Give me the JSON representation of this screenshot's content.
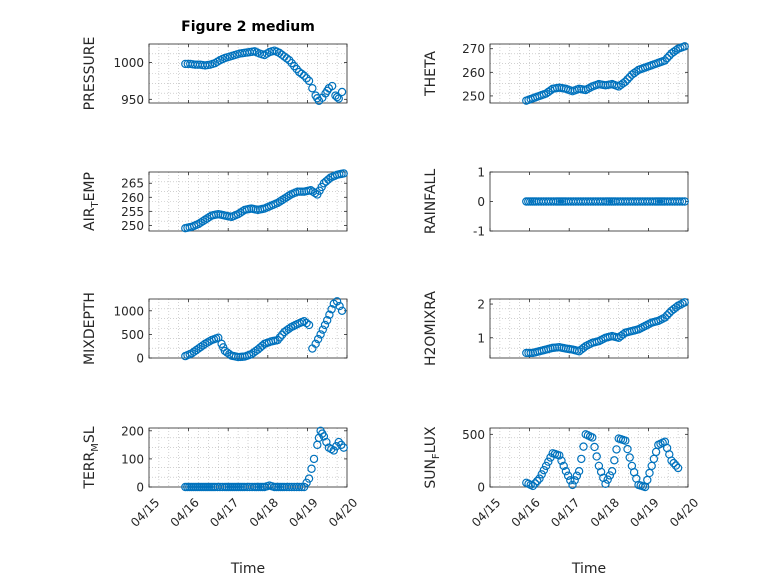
{
  "colors": {
    "marker": "#0072BD",
    "axis": "#262626",
    "grid": "#b5b5b5",
    "background": "#ffffff"
  },
  "chart_data": [
    {
      "type": "scatter",
      "title": "Figure 2 medium",
      "ylabel": "PRESSURE",
      "xlim": [
        "04/15",
        "04/20"
      ],
      "ylim": [
        945,
        1025
      ],
      "yticks": [
        950,
        1000
      ],
      "xticks": [
        "04/15",
        "04/16",
        "04/17",
        "04/18",
        "04/19",
        "04/20"
      ],
      "xtick_labels_shown": false,
      "grid": true,
      "points": [
        [
          "04/15 22:00",
          998
        ],
        [
          "04/16 01:00",
          998
        ],
        [
          "04/16 04:00",
          997
        ],
        [
          "04/16 07:00",
          997
        ],
        [
          "04/16 10:00",
          996
        ],
        [
          "04/16 13:00",
          997
        ],
        [
          "04/16 16:00",
          999
        ],
        [
          "04/16 19:00",
          1003
        ],
        [
          "04/16 22:00",
          1006
        ],
        [
          "04/17 01:00",
          1008
        ],
        [
          "04/17 04:00",
          1010
        ],
        [
          "04/17 07:00",
          1012
        ],
        [
          "04/17 10:00",
          1013
        ],
        [
          "04/17 13:00",
          1014
        ],
        [
          "04/17 16:00",
          1015
        ],
        [
          "04/17 19:00",
          1012
        ],
        [
          "04/17 22:00",
          1010
        ],
        [
          "04/18 01:00",
          1014
        ],
        [
          "04/18 04:00",
          1016
        ],
        [
          "04/18 07:00",
          1013
        ],
        [
          "04/18 10:00",
          1008
        ],
        [
          "04/18 13:00",
          1003
        ],
        [
          "04/18 16:00",
          995
        ],
        [
          "04/18 19:00",
          987
        ],
        [
          "04/18 22:00",
          982
        ],
        [
          "04/19 01:00",
          975
        ],
        [
          "04/19 03:00",
          965
        ],
        [
          "04/19 05:00",
          955
        ],
        [
          "04/19 07:00",
          948
        ],
        [
          "04/19 09:00",
          952
        ],
        [
          "04/19 11:00",
          958
        ],
        [
          "04/19 13:00",
          965
        ],
        [
          "04/19 15:00",
          968
        ],
        [
          "04/19 17:00",
          955
        ],
        [
          "04/19 19:00",
          951
        ],
        [
          "04/19 21:00",
          960
        ]
      ]
    },
    {
      "type": "scatter",
      "ylabel": "THETA",
      "xlim": [
        "04/15",
        "04/20"
      ],
      "ylim": [
        247,
        272
      ],
      "yticks": [
        250,
        260,
        270
      ],
      "xticks": [
        "04/15",
        "04/16",
        "04/17",
        "04/18",
        "04/19",
        "04/20"
      ],
      "xtick_labels_shown": false,
      "grid": true,
      "points": [
        [
          "04/15 22:00",
          248
        ],
        [
          "04/16 02:00",
          249
        ],
        [
          "04/16 06:00",
          250
        ],
        [
          "04/16 10:00",
          251
        ],
        [
          "04/16 14:00",
          253
        ],
        [
          "04/16 18:00",
          253.5
        ],
        [
          "04/16 22:00",
          253
        ],
        [
          "04/17 02:00",
          252
        ],
        [
          "04/17 06:00",
          253
        ],
        [
          "04/17 10:00",
          252.5
        ],
        [
          "04/17 14:00",
          254
        ],
        [
          "04/17 18:00",
          255
        ],
        [
          "04/17 22:00",
          254.5
        ],
        [
          "04/18 02:00",
          255
        ],
        [
          "04/18 06:00",
          254
        ],
        [
          "04/18 10:00",
          256
        ],
        [
          "04/18 14:00",
          259
        ],
        [
          "04/18 18:00",
          261
        ],
        [
          "04/18 22:00",
          262
        ],
        [
          "04/19 02:00",
          263
        ],
        [
          "04/19 06:00",
          264
        ],
        [
          "04/19 10:00",
          265
        ],
        [
          "04/19 14:00",
          268
        ],
        [
          "04/19 18:00",
          270
        ],
        [
          "04/19 22:00",
          271
        ]
      ]
    },
    {
      "type": "scatter",
      "ylabel": "AIR_TEMP",
      "xlim": [
        "04/15",
        "04/20"
      ],
      "ylim": [
        248,
        269
      ],
      "yticks": [
        250,
        255,
        260,
        265
      ],
      "xticks": [
        "04/15",
        "04/16",
        "04/17",
        "04/18",
        "04/19",
        "04/20"
      ],
      "xtick_labels_shown": false,
      "grid": true,
      "points": [
        [
          "04/15 22:00",
          249
        ],
        [
          "04/16 02:00",
          249.5
        ],
        [
          "04/16 06:00",
          250.5
        ],
        [
          "04/16 10:00",
          252
        ],
        [
          "04/16 14:00",
          253.5
        ],
        [
          "04/16 18:00",
          254
        ],
        [
          "04/16 22:00",
          253.5
        ],
        [
          "04/17 02:00",
          253
        ],
        [
          "04/17 06:00",
          254
        ],
        [
          "04/17 10:00",
          255.5
        ],
        [
          "04/17 14:00",
          256
        ],
        [
          "04/17 18:00",
          255.5
        ],
        [
          "04/17 22:00",
          256
        ],
        [
          "04/18 02:00",
          257
        ],
        [
          "04/18 06:00",
          258
        ],
        [
          "04/18 10:00",
          259.5
        ],
        [
          "04/18 14:00",
          261
        ],
        [
          "04/18 18:00",
          262
        ],
        [
          "04/18 22:00",
          262
        ],
        [
          "04/19 02:00",
          262.5
        ],
        [
          "04/19 06:00",
          261
        ],
        [
          "04/19 10:00",
          265
        ],
        [
          "04/19 14:00",
          267
        ],
        [
          "04/19 18:00",
          268
        ],
        [
          "04/19 22:00",
          268.5
        ]
      ]
    },
    {
      "type": "scatter",
      "ylabel": "RAINFALL",
      "xlim": [
        "04/15",
        "04/20"
      ],
      "ylim": [
        -1,
        1
      ],
      "yticks": [
        -1,
        0,
        1
      ],
      "xticks": [
        "04/15",
        "04/16",
        "04/17",
        "04/18",
        "04/19",
        "04/20"
      ],
      "xtick_labels_shown": false,
      "grid": false,
      "points": [
        [
          "04/15 22:00",
          0
        ],
        [
          "04/16 04:00",
          0
        ],
        [
          "04/16 10:00",
          0
        ],
        [
          "04/16 16:00",
          0
        ],
        [
          "04/16 22:00",
          0
        ],
        [
          "04/17 04:00",
          0
        ],
        [
          "04/17 10:00",
          0
        ],
        [
          "04/17 16:00",
          0
        ],
        [
          "04/17 22:00",
          0
        ],
        [
          "04/18 04:00",
          0
        ],
        [
          "04/18 10:00",
          0
        ],
        [
          "04/18 16:00",
          0
        ],
        [
          "04/18 22:00",
          0
        ],
        [
          "04/19 04:00",
          0
        ],
        [
          "04/19 10:00",
          0
        ],
        [
          "04/19 16:00",
          0
        ],
        [
          "04/19 22:00",
          0
        ]
      ]
    },
    {
      "type": "scatter",
      "ylabel": "MIXDEPTH",
      "xlim": [
        "04/15",
        "04/20"
      ],
      "ylim": [
        0,
        1250
      ],
      "yticks": [
        0,
        500,
        1000
      ],
      "xticks": [
        "04/15",
        "04/16",
        "04/17",
        "04/18",
        "04/19",
        "04/20"
      ],
      "xtick_labels_shown": false,
      "grid": true,
      "points": [
        [
          "04/15 22:00",
          40
        ],
        [
          "04/16 02:00",
          100
        ],
        [
          "04/16 06:00",
          200
        ],
        [
          "04/16 10:00",
          300
        ],
        [
          "04/16 14:00",
          380
        ],
        [
          "04/16 18:00",
          430
        ],
        [
          "04/16 20:00",
          300
        ],
        [
          "04/16 22:00",
          150
        ],
        [
          "04/17 02:00",
          50
        ],
        [
          "04/17 06:00",
          20
        ],
        [
          "04/17 10:00",
          30
        ],
        [
          "04/17 14:00",
          80
        ],
        [
          "04/17 18:00",
          180
        ],
        [
          "04/17 22:00",
          300
        ],
        [
          "04/18 02:00",
          350
        ],
        [
          "04/18 06:00",
          380
        ],
        [
          "04/18 10:00",
          550
        ],
        [
          "04/18 14:00",
          650
        ],
        [
          "04/18 18:00",
          720
        ],
        [
          "04/18 22:00",
          780
        ],
        [
          "04/19 01:00",
          700
        ],
        [
          "04/19 03:00",
          200
        ],
        [
          "04/19 05:00",
          300
        ],
        [
          "04/19 08:00",
          500
        ],
        [
          "04/19 12:00",
          800
        ],
        [
          "04/19 16:00",
          1150
        ],
        [
          "04/19 18:00",
          1200
        ],
        [
          "04/19 21:00",
          1000
        ]
      ]
    },
    {
      "type": "scatter",
      "ylabel": "H2OMIXRA",
      "xlim": [
        "04/15",
        "04/20"
      ],
      "ylim": [
        0.4,
        2.15
      ],
      "yticks": [
        1,
        2
      ],
      "xticks": [
        "04/15",
        "04/16",
        "04/17",
        "04/18",
        "04/19",
        "04/20"
      ],
      "xtick_labels_shown": false,
      "grid": true,
      "points": [
        [
          "04/15 22:00",
          0.55
        ],
        [
          "04/16 02:00",
          0.55
        ],
        [
          "04/16 06:00",
          0.6
        ],
        [
          "04/16 10:00",
          0.65
        ],
        [
          "04/16 14:00",
          0.7
        ],
        [
          "04/16 18:00",
          0.72
        ],
        [
          "04/16 22:00",
          0.68
        ],
        [
          "04/17 02:00",
          0.65
        ],
        [
          "04/17 06:00",
          0.6
        ],
        [
          "04/17 10:00",
          0.75
        ],
        [
          "04/17 14:00",
          0.85
        ],
        [
          "04/17 18:00",
          0.9
        ],
        [
          "04/17 22:00",
          1.0
        ],
        [
          "04/18 02:00",
          1.05
        ],
        [
          "04/18 06:00",
          1.0
        ],
        [
          "04/18 10:00",
          1.15
        ],
        [
          "04/18 14:00",
          1.2
        ],
        [
          "04/18 18:00",
          1.25
        ],
        [
          "04/18 22:00",
          1.35
        ],
        [
          "04/19 02:00",
          1.45
        ],
        [
          "04/19 06:00",
          1.5
        ],
        [
          "04/19 10:00",
          1.6
        ],
        [
          "04/19 14:00",
          1.8
        ],
        [
          "04/19 18:00",
          1.95
        ],
        [
          "04/19 22:00",
          2.05
        ]
      ]
    },
    {
      "type": "scatter",
      "ylabel": "TERR_MSL",
      "xlabel": "Time",
      "xlim": [
        "04/15",
        "04/20"
      ],
      "ylim": [
        0,
        210
      ],
      "yticks": [
        0,
        100,
        200
      ],
      "xticks": [
        "04/15",
        "04/16",
        "04/17",
        "04/18",
        "04/19",
        "04/20"
      ],
      "xtick_labels_shown": true,
      "grid": true,
      "points": [
        [
          "04/15 22:00",
          0
        ],
        [
          "04/16 04:00",
          0
        ],
        [
          "04/16 10:00",
          0
        ],
        [
          "04/16 16:00",
          0
        ],
        [
          "04/16 22:00",
          0
        ],
        [
          "04/17 04:00",
          0
        ],
        [
          "04/17 10:00",
          0
        ],
        [
          "04/17 16:00",
          0
        ],
        [
          "04/17 22:00",
          0
        ],
        [
          "04/18 01:00",
          5
        ],
        [
          "04/18 04:00",
          0
        ],
        [
          "04/18 10:00",
          0
        ],
        [
          "04/18 16:00",
          0
        ],
        [
          "04/18 22:00",
          0
        ],
        [
          "04/19 01:00",
          30
        ],
        [
          "04/19 04:00",
          100
        ],
        [
          "04/19 06:00",
          150
        ],
        [
          "04/19 08:00",
          200
        ],
        [
          "04/19 10:00",
          180
        ],
        [
          "04/19 13:00",
          140
        ],
        [
          "04/19 16:00",
          130
        ],
        [
          "04/19 19:00",
          160
        ],
        [
          "04/19 22:00",
          140
        ]
      ]
    },
    {
      "type": "scatter",
      "ylabel": "SUN_FLUX",
      "xlabel": "Time",
      "xlim": [
        "04/15",
        "04/20"
      ],
      "ylim": [
        0,
        560
      ],
      "yticks": [
        0,
        500
      ],
      "xticks": [
        "04/15",
        "04/16",
        "04/17",
        "04/18",
        "04/19",
        "04/20"
      ],
      "xtick_labels_shown": true,
      "grid": true,
      "points": [
        [
          "04/15 22:00",
          40
        ],
        [
          "04/16 02:00",
          10
        ],
        [
          "04/16 06:00",
          80
        ],
        [
          "04/16 10:00",
          200
        ],
        [
          "04/16 14:00",
          320
        ],
        [
          "04/16 18:00",
          300
        ],
        [
          "04/16 22:00",
          150
        ],
        [
          "04/17 02:00",
          20
        ],
        [
          "04/17 06:00",
          150
        ],
        [
          "04/17 10:00",
          500
        ],
        [
          "04/17 14:00",
          470
        ],
        [
          "04/17 18:00",
          200
        ],
        [
          "04/17 22:00",
          30
        ],
        [
          "04/18 02:00",
          150
        ],
        [
          "04/18 06:00",
          460
        ],
        [
          "04/18 10:00",
          440
        ],
        [
          "04/18 14:00",
          200
        ],
        [
          "04/18 18:00",
          20
        ],
        [
          "04/18 22:00",
          0
        ],
        [
          "04/19 02:00",
          200
        ],
        [
          "04/19 06:00",
          400
        ],
        [
          "04/19 10:00",
          430
        ],
        [
          "04/19 14:00",
          250
        ],
        [
          "04/19 18:00",
          180
        ]
      ]
    }
  ]
}
